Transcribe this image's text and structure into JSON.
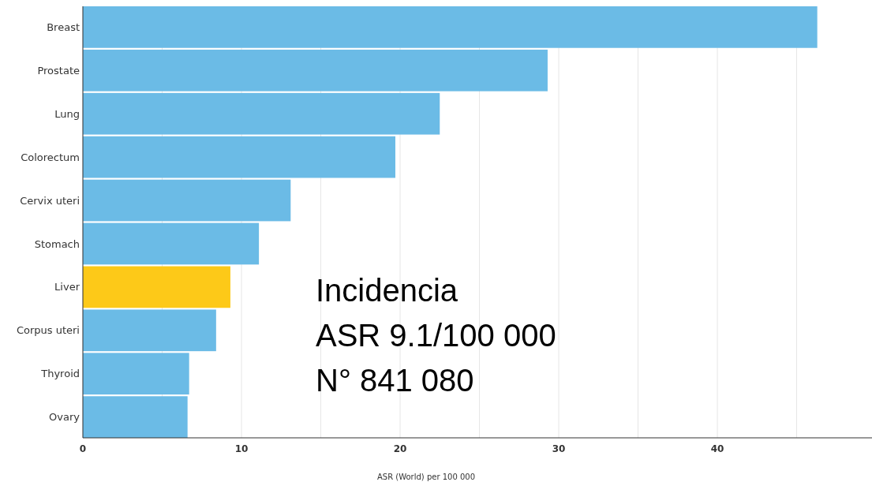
{
  "chart_data": {
    "type": "bar",
    "orientation": "horizontal",
    "xlabel": "ASR (World) per 100 000",
    "categories": [
      "Breast",
      "Prostate",
      "Lung",
      "Colorectum",
      "Cervix uteri",
      "Stomach",
      "Liver",
      "Corpus uteri",
      "Thyroid",
      "Ovary"
    ],
    "values": [
      46.3,
      29.3,
      22.5,
      19.7,
      13.1,
      11.1,
      9.3,
      8.4,
      6.7,
      6.6
    ],
    "colors": [
      "#6bbbe6",
      "#6bbbe6",
      "#6bbbe6",
      "#6bbbe6",
      "#6bbbe6",
      "#6bbbe6",
      "#fdc918",
      "#6bbbe6",
      "#6bbbe6",
      "#6bbbe6"
    ],
    "xlim": [
      0,
      49.75
    ],
    "xticks": [
      0,
      {
        "value": 5,
        "label": null
      },
      10,
      {
        "value": 15,
        "label": null
      },
      20,
      {
        "value": 25,
        "label": null
      },
      30,
      {
        "value": 35,
        "label": null
      },
      40,
      {
        "value": 45,
        "label": null
      }
    ],
    "grid": "x",
    "annotations": [
      "Incidencia",
      "ASR 9.1/100 000",
      "N° 841 080"
    ]
  }
}
